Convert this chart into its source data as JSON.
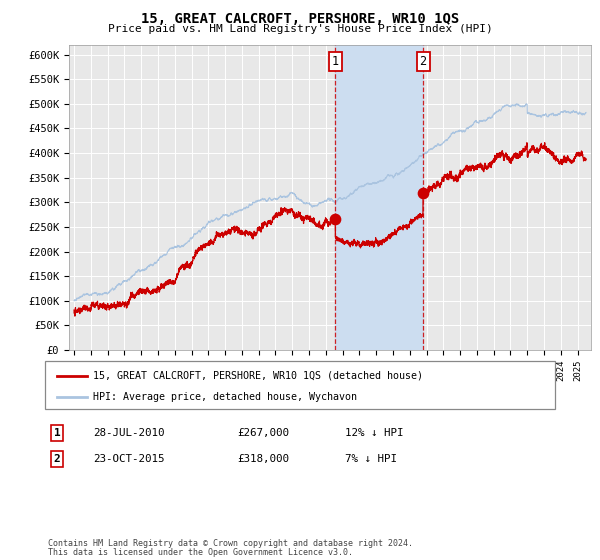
{
  "title": "15, GREAT CALCROFT, PERSHORE, WR10 1QS",
  "subtitle": "Price paid vs. HM Land Registry's House Price Index (HPI)",
  "legend_line1": "15, GREAT CALCROFT, PERSHORE, WR10 1QS (detached house)",
  "legend_line2": "HPI: Average price, detached house, Wychavon",
  "transaction1_label": "1",
  "transaction1_date": "28-JUL-2010",
  "transaction1_price": 267000,
  "transaction1_info": "12% ↓ HPI",
  "transaction2_label": "2",
  "transaction2_date": "23-OCT-2015",
  "transaction2_price": 318000,
  "transaction2_info": "7% ↓ HPI",
  "footnote1": "Contains HM Land Registry data © Crown copyright and database right 2024.",
  "footnote2": "This data is licensed under the Open Government Licence v3.0.",
  "hpi_color": "#aac4e0",
  "price_color": "#cc0000",
  "background_color": "#ffffff",
  "plot_bg_color": "#e8e8e8",
  "grid_color": "#ffffff",
  "shade_color": "#ccddf0",
  "ylim": [
    0,
    620000
  ],
  "yticks": [
    0,
    50000,
    100000,
    150000,
    200000,
    250000,
    300000,
    350000,
    400000,
    450000,
    500000,
    550000,
    600000
  ],
  "start_year": 1995,
  "end_year": 2025,
  "transaction1_x": 2010.57,
  "transaction2_x": 2015.8
}
